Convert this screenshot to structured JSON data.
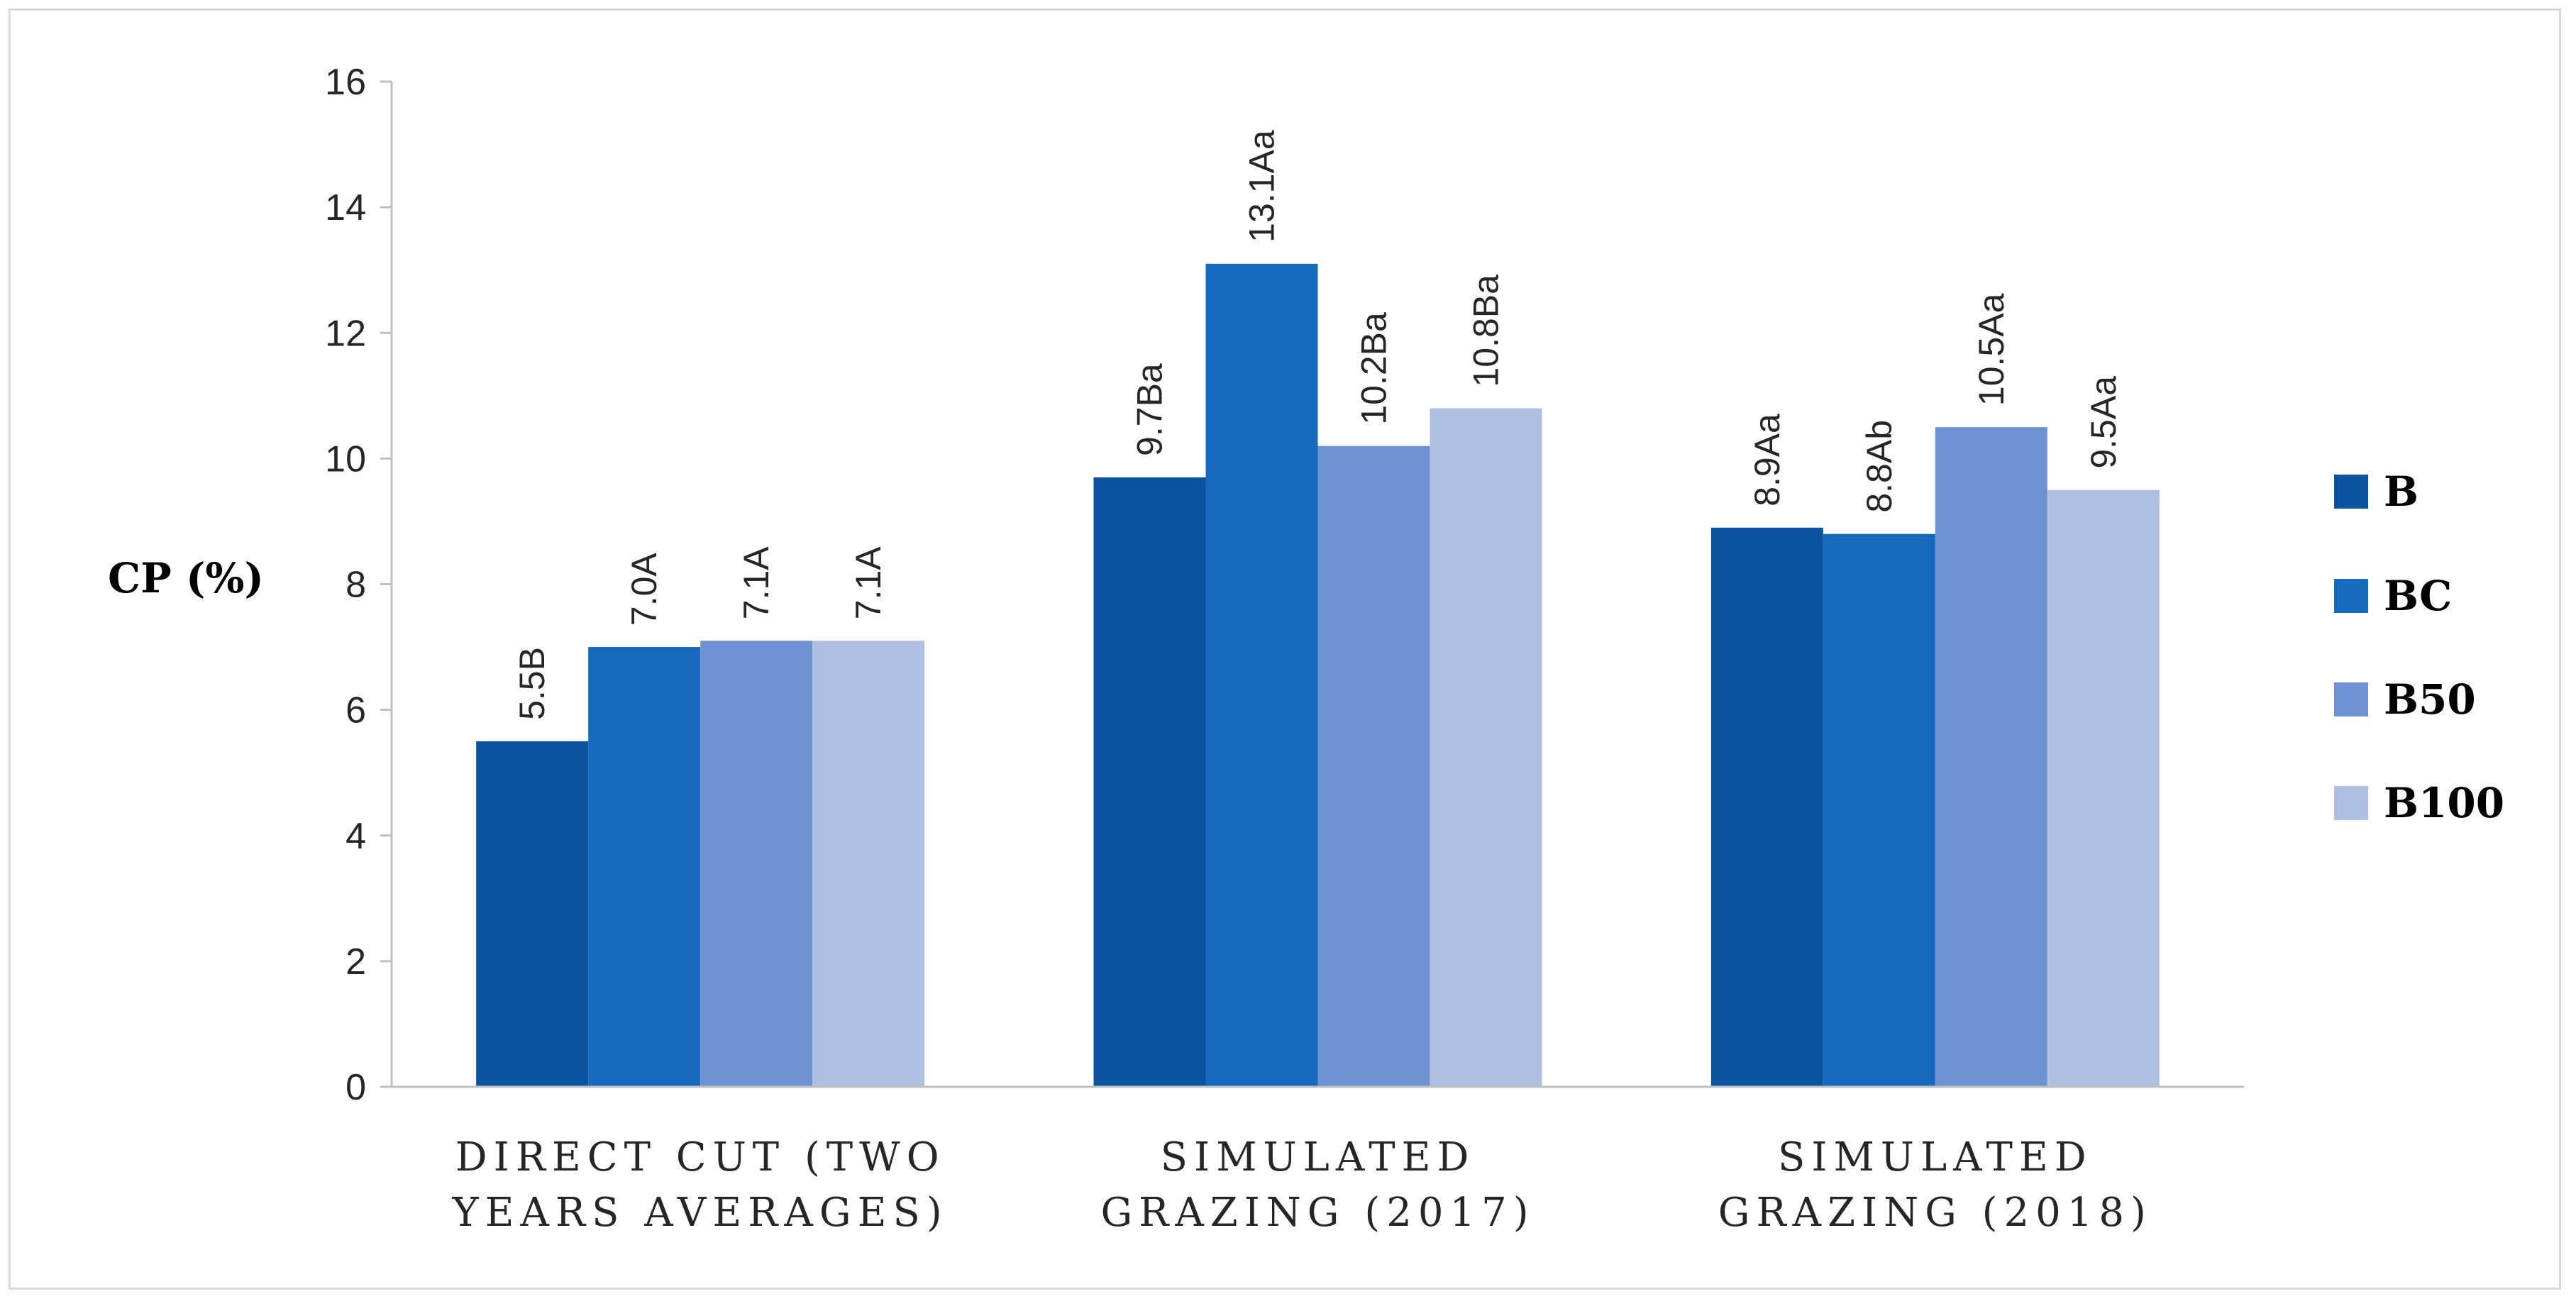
{
  "chart_data": {
    "type": "bar",
    "title": "",
    "ylabel": "CP (%)",
    "xlabel": "",
    "ylim": [
      0,
      16
    ],
    "yticks": [
      0,
      2,
      4,
      6,
      8,
      10,
      12,
      14,
      16
    ],
    "grid": false,
    "legend_position": "right",
    "categories": [
      [
        "DIRECT CUT  (TWO",
        "YEARS AVERAGES)"
      ],
      [
        "SIMULATED",
        "GRAZING  (2017)"
      ],
      [
        "SIMULATED",
        "GRAZING  (2018)"
      ]
    ],
    "series": [
      {
        "name": "B",
        "color": "#0B539F",
        "values": [
          5.5,
          9.7,
          8.9
        ],
        "labels": [
          "5.5B",
          "9.7Ba",
          "8.9Aa"
        ]
      },
      {
        "name": "BC",
        "color": "#1769BE",
        "values": [
          7.0,
          13.1,
          8.8
        ],
        "labels": [
          "7.0A",
          "13.1Aa",
          "8.8Ab"
        ]
      },
      {
        "name": "B50",
        "color": "#6F93D2",
        "values": [
          7.1,
          10.2,
          10.5
        ],
        "labels": [
          "7.1A",
          "10.2Ba",
          "10.5Aa"
        ]
      },
      {
        "name": "B100",
        "color": "#AFBFE2",
        "values": [
          7.1,
          10.8,
          9.5
        ],
        "labels": [
          "7.1A",
          "10.8Ba",
          "9.5Aa"
        ]
      }
    ]
  }
}
